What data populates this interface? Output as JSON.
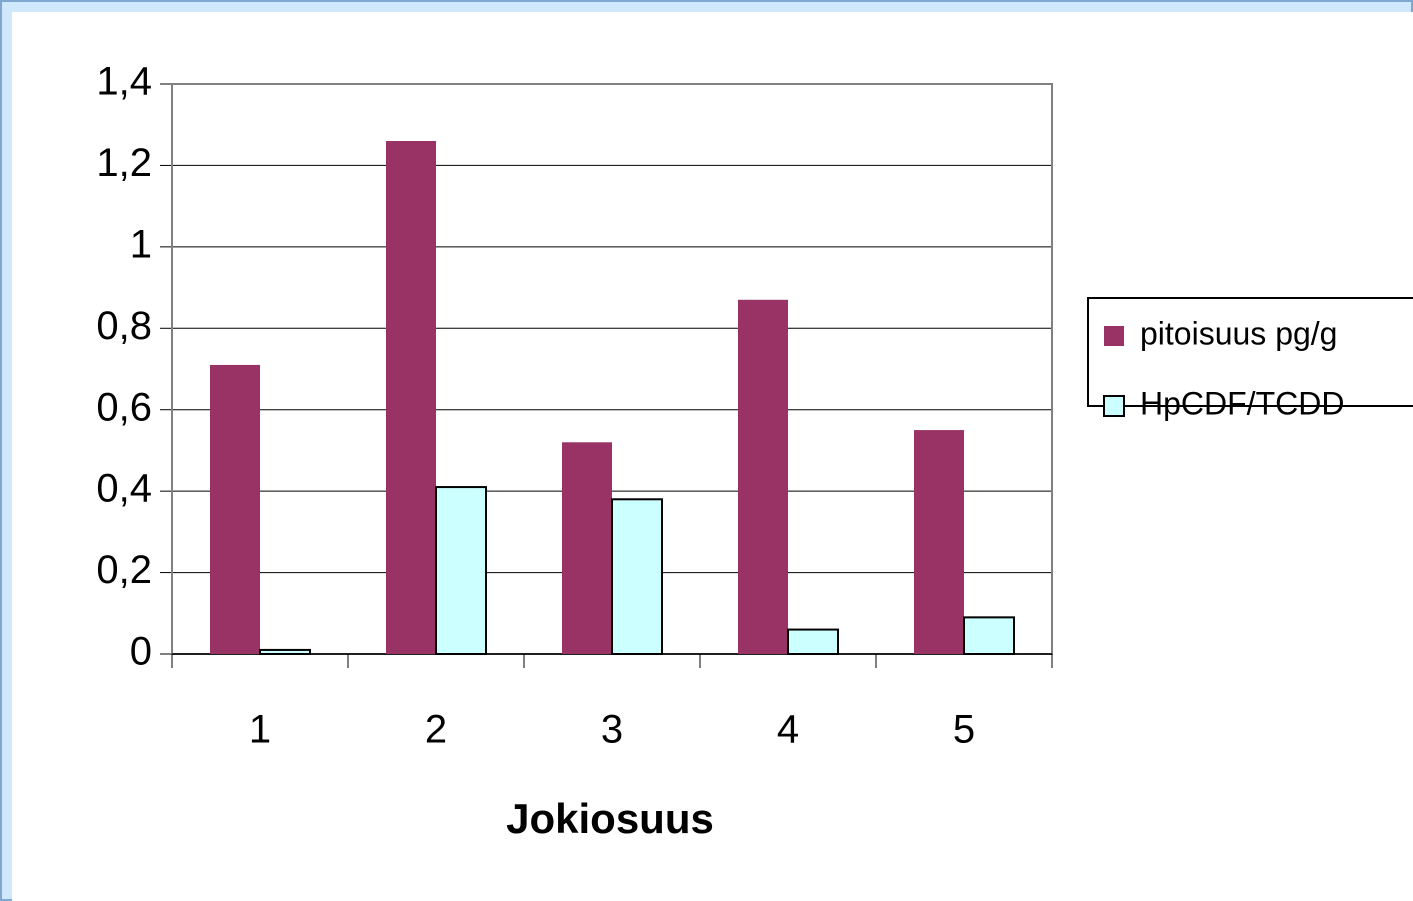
{
  "chart_data": {
    "type": "bar",
    "x_label": "Jokiosuus",
    "categories": [
      "1",
      "2",
      "3",
      "4",
      "5"
    ],
    "series": [
      {
        "name": "pitoisuus pg/g",
        "color": "#993366",
        "values": [
          0.71,
          1.26,
          0.52,
          0.87,
          0.55
        ]
      },
      {
        "name": "HpCDF/TCDD",
        "color": "#ccffff",
        "values": [
          0.01,
          0.41,
          0.38,
          0.06,
          0.09
        ]
      }
    ],
    "ylim": [
      0,
      1.4
    ],
    "yticks": [
      0,
      {
        "value": 0.2,
        "label": "0,2"
      },
      {
        "value": 0.4,
        "label": "0,4"
      },
      {
        "value": 0.6,
        "label": "0,6"
      },
      {
        "value": 0.8,
        "label": "0,8"
      },
      1,
      {
        "value": 1.2,
        "label": "1,2"
      },
      {
        "value": 1.4,
        "label": "1,4"
      }
    ],
    "grid": true,
    "legend": "right"
  }
}
